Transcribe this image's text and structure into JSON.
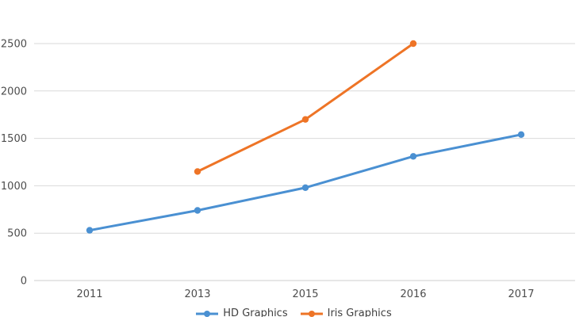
{
  "chart_data": {
    "type": "line",
    "title": "",
    "xlabel": "",
    "ylabel": "",
    "categories": [
      "2011",
      "2013",
      "2015",
      "2016",
      "2017"
    ],
    "series": [
      {
        "name": "HD Graphics",
        "color": "#4A90D2",
        "values": [
          530,
          740,
          980,
          1310,
          1540
        ]
      },
      {
        "name": "Iris Graphics",
        "color": "#EE7426",
        "values": [
          null,
          1150,
          1700,
          2500,
          null
        ]
      }
    ],
    "ylim": [
      0,
      2500
    ],
    "yticks": [
      0,
      500,
      1000,
      1500,
      2000,
      2500
    ],
    "grid": true,
    "markers": true,
    "legend_position": "bottom"
  },
  "colors": {
    "background": "#FFFFFF",
    "gridline": "#D9D9D9",
    "axis_line": "#CCCCCC",
    "tick_label": "#4D4D4D",
    "legend_label": "#404040"
  }
}
